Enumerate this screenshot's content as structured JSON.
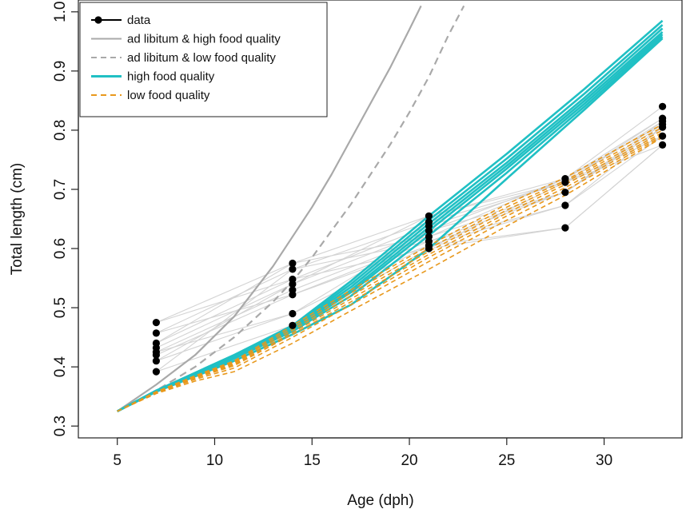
{
  "chart_data": {
    "type": "line",
    "title": "",
    "xlabel": "Age (dph)",
    "ylabel": "Total length (cm)",
    "xlim": [
      3,
      34
    ],
    "ylim": [
      0.28,
      1.02
    ],
    "xticks": [
      5,
      10,
      15,
      20,
      25,
      30
    ],
    "yticks": [
      0.3,
      0.4,
      0.5,
      0.6,
      0.7,
      0.8,
      0.9,
      1.0
    ],
    "grid": false,
    "legend_position": "top-left",
    "colors": {
      "data": "#000000",
      "data_lines": "#d3d3d3",
      "ad_libitum": "#a9a9a9",
      "high_food": "#20c0c4",
      "low_food": "#e8981c"
    },
    "legend": [
      {
        "label": "data",
        "style": "points-line",
        "color": "#000000"
      },
      {
        "label": "ad libitum & high food quality",
        "style": "solid",
        "color": "#a9a9a9"
      },
      {
        "label": "ad libitum & low food quality",
        "style": "dashed",
        "color": "#a9a9a9"
      },
      {
        "label": "high food quality",
        "style": "solid",
        "color": "#20c0c4"
      },
      {
        "label": "low food quality",
        "style": "dashed",
        "color": "#e8981c"
      }
    ],
    "data_points": {
      "x": [
        7,
        14,
        21,
        28,
        33
      ],
      "y": [
        [
          0.475,
          0.457,
          0.44,
          0.432,
          0.425,
          0.42,
          0.41,
          0.392
        ],
        [
          0.575,
          0.565,
          0.548,
          0.54,
          0.53,
          0.522,
          0.49,
          0.47
        ],
        [
          0.655,
          0.645,
          0.638,
          0.63,
          0.62,
          0.612,
          0.605,
          0.6
        ],
        [
          0.718,
          0.712,
          0.695,
          0.673,
          0.635
        ],
        [
          0.84,
          0.82,
          0.815,
          0.81,
          0.805,
          0.79,
          0.775
        ]
      ]
    },
    "individual_trajectories": [
      [
        0.475,
        0.575,
        0.655,
        0.718,
        0.84
      ],
      [
        0.457,
        0.565,
        0.645,
        0.712,
        0.82
      ],
      [
        0.44,
        0.548,
        0.638,
        0.712,
        0.815
      ],
      [
        0.432,
        0.54,
        0.63,
        0.695,
        0.81
      ],
      [
        0.425,
        0.53,
        0.62,
        0.695,
        0.805
      ],
      [
        0.42,
        0.522,
        0.612,
        0.673,
        0.79
      ],
      [
        0.41,
        0.49,
        0.605,
        0.635,
        0.775
      ],
      [
        0.392,
        0.47,
        0.6,
        0.635,
        0.775
      ],
      [
        0.44,
        0.575,
        0.62,
        0.718,
        0.81
      ],
      [
        0.41,
        0.54,
        0.655,
        0.712,
        0.79
      ],
      [
        0.457,
        0.522,
        0.605,
        0.673,
        0.805
      ],
      [
        0.425,
        0.49,
        0.63,
        0.718,
        0.82
      ],
      [
        0.392,
        0.565,
        0.612,
        0.695,
        0.815
      ],
      [
        0.475,
        0.548,
        0.6,
        0.712,
        0.775
      ]
    ],
    "series": [
      {
        "name": "ad libitum & high food quality",
        "style": "solid",
        "x": [
          5,
          7,
          9,
          11,
          13,
          14,
          15,
          16,
          17,
          18,
          19,
          20,
          20.6
        ],
        "y": [
          0.325,
          0.37,
          0.42,
          0.485,
          0.57,
          0.62,
          0.67,
          0.725,
          0.785,
          0.845,
          0.905,
          0.97,
          1.01
        ]
      },
      {
        "name": "ad libitum & low food quality",
        "style": "dashed",
        "x": [
          5,
          7,
          9,
          11,
          13,
          14,
          15,
          16,
          17,
          18,
          19,
          20,
          21,
          22,
          22.8
        ],
        "y": [
          0.325,
          0.36,
          0.4,
          0.45,
          0.51,
          0.545,
          0.585,
          0.63,
          0.675,
          0.725,
          0.775,
          0.83,
          0.89,
          0.96,
          1.01
        ]
      },
      {
        "name": "high food quality",
        "style": "solid",
        "runs": [
          {
            "x": [
              5,
              7,
              9,
              11,
              14,
              17,
              21,
              25,
              29,
              33
            ],
            "y": [
              0.325,
              0.36,
              0.39,
              0.42,
              0.47,
              0.545,
              0.655,
              0.76,
              0.87,
              0.985
            ]
          },
          {
            "x": [
              5,
              7,
              9,
              11,
              14,
              17,
              21,
              25,
              29,
              33
            ],
            "y": [
              0.325,
              0.36,
              0.39,
              0.42,
              0.468,
              0.54,
              0.648,
              0.752,
              0.862,
              0.978
            ]
          },
          {
            "x": [
              5,
              7,
              9,
              11,
              14,
              17,
              21,
              25,
              29,
              33
            ],
            "y": [
              0.325,
              0.36,
              0.389,
              0.418,
              0.466,
              0.535,
              0.642,
              0.745,
              0.855,
              0.972
            ]
          },
          {
            "x": [
              5,
              7,
              9,
              11,
              14,
              17,
              21,
              25,
              29,
              33
            ],
            "y": [
              0.325,
              0.359,
              0.388,
              0.417,
              0.464,
              0.53,
              0.636,
              0.74,
              0.85,
              0.966
            ]
          },
          {
            "x": [
              5,
              7,
              9,
              11,
              14,
              17,
              21,
              25,
              29,
              33
            ],
            "y": [
              0.325,
              0.359,
              0.387,
              0.416,
              0.462,
              0.526,
              0.63,
              0.735,
              0.845,
              0.962
            ]
          },
          {
            "x": [
              5,
              7,
              9,
              11,
              14,
              17,
              21,
              25,
              29,
              33
            ],
            "y": [
              0.325,
              0.358,
              0.386,
              0.414,
              0.46,
              0.52,
              0.622,
              0.728,
              0.84,
              0.958
            ]
          },
          {
            "x": [
              5,
              7,
              9,
              11,
              14,
              17,
              21,
              25,
              29,
              33
            ],
            "y": [
              0.325,
              0.358,
              0.384,
              0.41,
              0.455,
              0.505,
              0.6,
              0.718,
              0.835,
              0.955
            ]
          }
        ]
      },
      {
        "name": "low food quality",
        "style": "dashed",
        "runs": [
          {
            "x": [
              5,
              7,
              9,
              11,
              14,
              17,
              21,
              25,
              28,
              33
            ],
            "y": [
              0.325,
              0.358,
              0.385,
              0.41,
              0.47,
              0.53,
              0.605,
              0.675,
              0.72,
              0.81
            ]
          },
          {
            "x": [
              5,
              7,
              9,
              11,
              14,
              17,
              21,
              25,
              28,
              33
            ],
            "y": [
              0.325,
              0.358,
              0.384,
              0.408,
              0.466,
              0.525,
              0.6,
              0.67,
              0.715,
              0.805
            ]
          },
          {
            "x": [
              5,
              7,
              9,
              11,
              14,
              17,
              21,
              25,
              28,
              33
            ],
            "y": [
              0.325,
              0.357,
              0.383,
              0.406,
              0.462,
              0.52,
              0.595,
              0.665,
              0.712,
              0.8
            ]
          },
          {
            "x": [
              5,
              7,
              9,
              11,
              14,
              17,
              21,
              25,
              28,
              33
            ],
            "y": [
              0.325,
              0.357,
              0.382,
              0.404,
              0.458,
              0.515,
              0.59,
              0.66,
              0.708,
              0.796
            ]
          },
          {
            "x": [
              5,
              7,
              9,
              11,
              14,
              17,
              21,
              25,
              28,
              33
            ],
            "y": [
              0.325,
              0.356,
              0.381,
              0.402,
              0.455,
              0.51,
              0.585,
              0.655,
              0.703,
              0.793
            ]
          },
          {
            "x": [
              5,
              7,
              9,
              11,
              14,
              17,
              21,
              25,
              28,
              33
            ],
            "y": [
              0.325,
              0.356,
              0.379,
              0.398,
              0.45,
              0.505,
              0.578,
              0.648,
              0.698,
              0.79
            ]
          },
          {
            "x": [
              5,
              7,
              9,
              11,
              14,
              17,
              21,
              25,
              28,
              33
            ],
            "y": [
              0.325,
              0.355,
              0.376,
              0.392,
              0.44,
              0.495,
              0.565,
              0.638,
              0.69,
              0.788
            ]
          }
        ]
      }
    ]
  }
}
